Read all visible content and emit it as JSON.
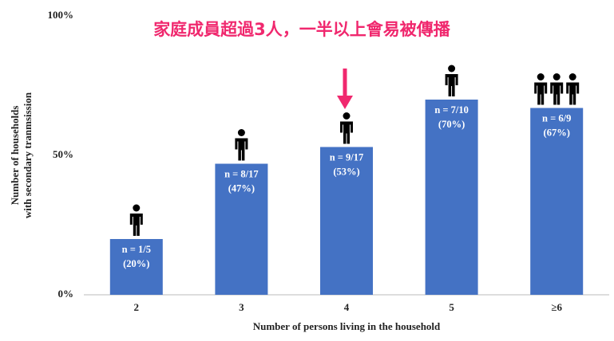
{
  "chart_data": {
    "type": "bar",
    "annotation": "家庭成員超過3人，一半以上會易被傳播",
    "categories": [
      "2",
      "3",
      "4",
      "5",
      "≥6"
    ],
    "values": [
      20,
      47,
      53,
      70,
      67
    ],
    "value_labels": [
      [
        "n = 1/5",
        "(20%)"
      ],
      [
        "n = 8/17",
        "(47%)"
      ],
      [
        "n = 9/17",
        "(53%)"
      ],
      [
        "n = 7/10",
        "(70%)"
      ],
      [
        "n = 6/9",
        "(67%)"
      ]
    ],
    "color": "#4472c4",
    "ylim": [
      0,
      100
    ],
    "yticks": [
      {
        "value": 0,
        "label": "0%"
      },
      {
        "value": 50,
        "label": "50%"
      },
      {
        "value": 100,
        "label": "100%"
      }
    ],
    "grid": false,
    "x_label": "Number of persons living in the household",
    "y_label": [
      "Number of households",
      "with secondary tranmsission"
    ]
  }
}
